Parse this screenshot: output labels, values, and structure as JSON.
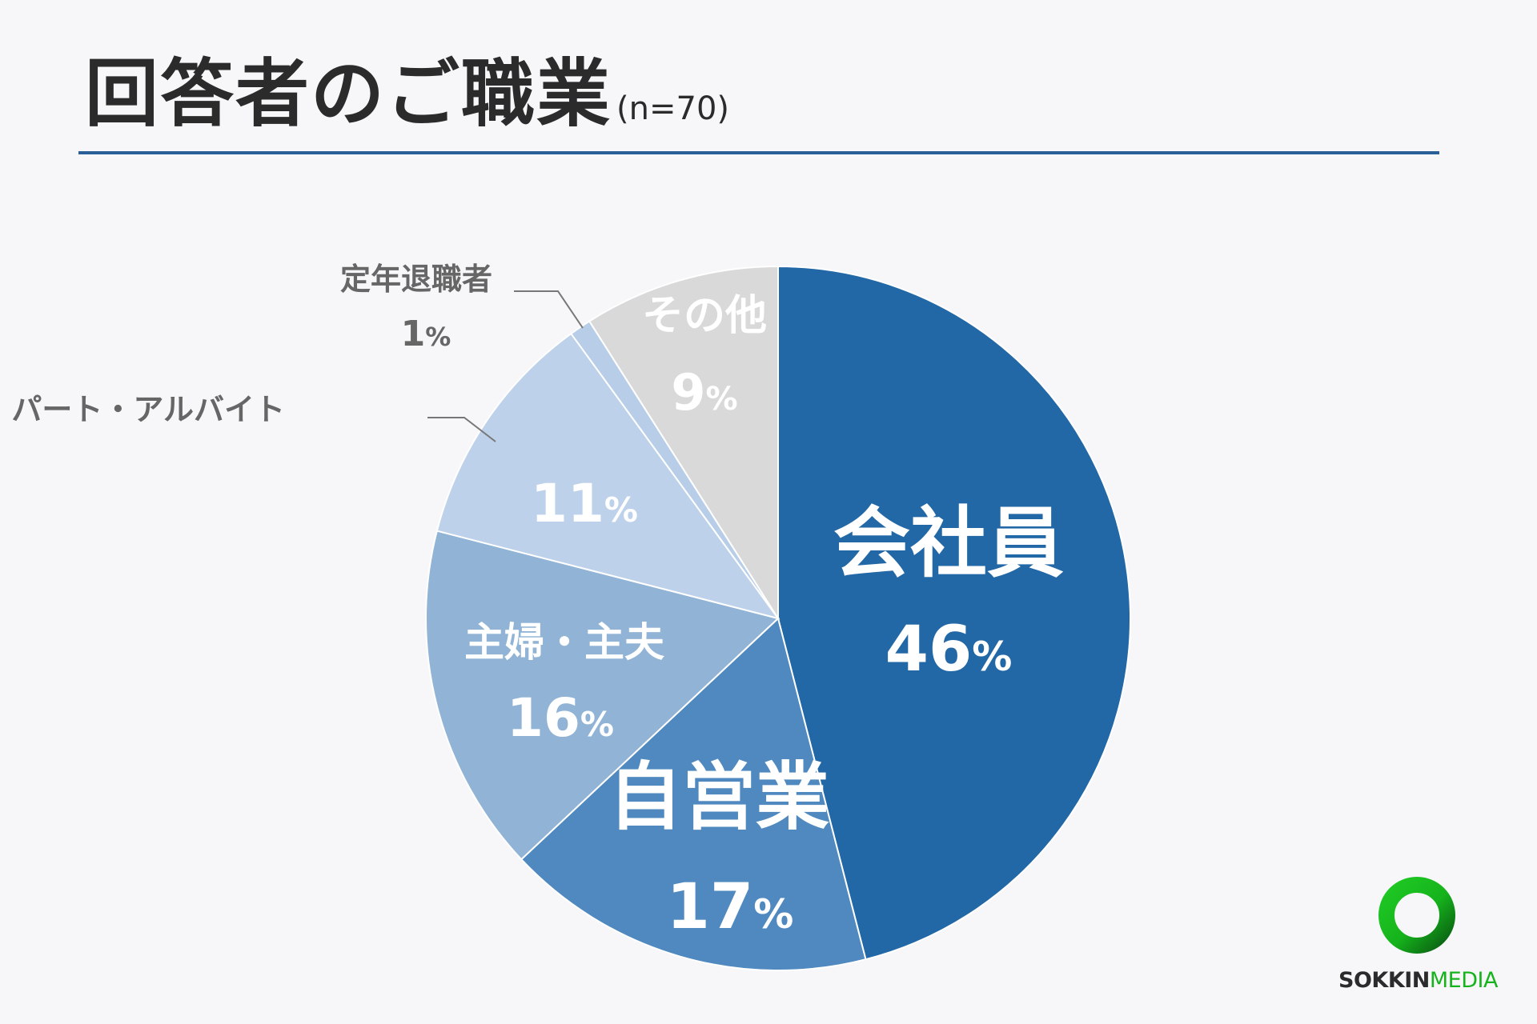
{
  "header": {
    "title": "回答者のご職業",
    "sample": "(n=70)"
  },
  "colors": {
    "rule": "#2a5f98",
    "text_dark": "#2b2b2b",
    "label_gray": "#666666",
    "leader_gray": "#777777",
    "slice_border": "#ffffff"
  },
  "chart_data": {
    "type": "pie",
    "start_angle_deg": 0,
    "direction": "clockwise",
    "slices": [
      {
        "label": "会社員",
        "value": 46,
        "display": "46",
        "color": "#2267a6",
        "label_style": "inside-large"
      },
      {
        "label": "自営業",
        "value": 17,
        "display": "17",
        "color": "#4f89bf",
        "label_style": "inside-large"
      },
      {
        "label": "主婦・主夫",
        "value": 16,
        "display": "16",
        "color": "#91b4d6",
        "label_style": "inside-medium"
      },
      {
        "label": "パート・アルバイト",
        "value": 11,
        "display": "11",
        "color": "#bdd1ea",
        "label_style": "outside-name-inside-value"
      },
      {
        "label": "定年退職者",
        "value": 1,
        "display": "1",
        "color": "#b7cde8",
        "label_style": "outside"
      },
      {
        "label": "その他",
        "value": 9,
        "display": "9",
        "color": "#d9d9d9",
        "label_style": "inside-medium"
      }
    ],
    "percent_sign": "%"
  },
  "logo": {
    "part1": "SOKKIN",
    "part2": "MEDIA",
    "ring_color": "#16b31c",
    "ring_color_dark": "#0a5e12"
  }
}
